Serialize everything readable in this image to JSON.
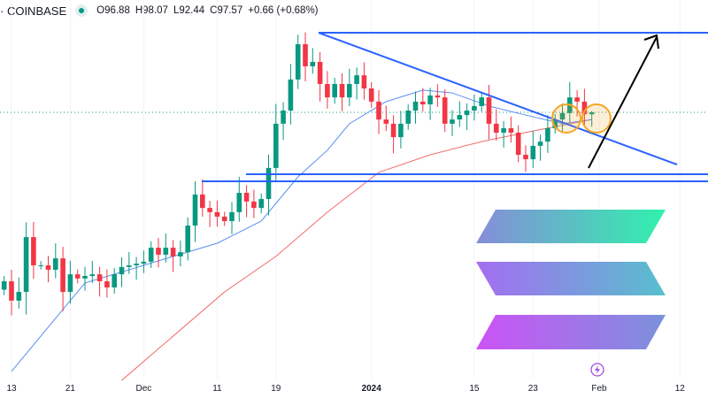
{
  "header": {
    "exchange": "· COINBASE",
    "status_color": "#089981",
    "open": "O96.88",
    "high": "H98.07",
    "low": "L92.44",
    "close": "C97.57",
    "change": "+0.66 (+0.68%)"
  },
  "chart_data": {
    "type": "candlestick",
    "title": "",
    "start_date": "2023-11-12",
    "closes": [
      37.2,
      30.3,
      33.4,
      53.0,
      42.9,
      42.9,
      41.3,
      45.4,
      33.4,
      39.7,
      38.2,
      39.1,
      39.7,
      37.2,
      35.0,
      39.7,
      42.3,
      42.9,
      43.5,
      44.2,
      49.2,
      46.7,
      49.2,
      46.1,
      47.6,
      57.1,
      68.2,
      63.4,
      61.9,
      60.3,
      58.7,
      61.9,
      68.8,
      65.7,
      63.4,
      66.6,
      77.7,
      93.5,
      98.2,
      109.3,
      121.9,
      114.0,
      115.6,
      107.7,
      102.9,
      107.7,
      102.9,
      107.7,
      110.8,
      106.1,
      101.4,
      95.0,
      93.5,
      88.7,
      93.5,
      98.2,
      101.4,
      100.4,
      103.6,
      102.9,
      93.5,
      95.0,
      96.6,
      98.2,
      99.8,
      102.9,
      93.5,
      90.3,
      91.9,
      90.3,
      82.4,
      80.8,
      85.6,
      87.1,
      91.9,
      95.0,
      97.3,
      102.9,
      101.4,
      96.88,
      97.57
    ],
    "last_candle": {
      "open": 96.88,
      "high": 98.07,
      "low": 92.44,
      "close": 97.57
    },
    "ma_blue": [
      [
        "2023-11-13",
        5.0
      ],
      [
        "2023-11-19",
        24.0
      ],
      [
        "2023-11-23",
        36.6
      ],
      [
        "2023-11-29",
        41.3
      ],
      [
        "2023-12-05",
        46.1
      ],
      [
        "2023-12-11",
        50.8
      ],
      [
        "2023-12-17",
        58.7
      ],
      [
        "2023-12-22",
        74.5
      ],
      [
        "2023-12-26",
        84.0
      ],
      [
        "2023-12-29",
        93.5
      ],
      [
        "2024-01-03",
        101.4
      ],
      [
        "2024-01-08",
        105.5
      ],
      [
        "2024-01-12",
        104.5
      ],
      [
        "2024-01-17",
        99.8
      ],
      [
        "2024-01-22",
        96.6
      ],
      [
        "2024-01-27",
        93.5
      ],
      [
        "2024-01-31",
        95.0
      ]
    ],
    "ma_red": [
      [
        "2023-11-28",
        1.8
      ],
      [
        "2023-12-05",
        17.6
      ],
      [
        "2023-12-12",
        33.4
      ],
      [
        "2023-12-19",
        46.1
      ],
      [
        "2023-12-26",
        61.9
      ],
      [
        "2024-01-02",
        76.1
      ],
      [
        "2024-01-09",
        82.4
      ],
      [
        "2024-01-16",
        87.1
      ],
      [
        "2024-01-23",
        90.9
      ],
      [
        "2024-01-31",
        95.0
      ]
    ],
    "x_ticks": [
      [
        "13",
        "2023-11-13"
      ],
      [
        "21",
        "2023-11-21"
      ],
      [
        "Dec",
        "2023-12-01"
      ],
      [
        "11",
        "2023-12-11"
      ],
      [
        "19",
        "2023-12-19"
      ],
      [
        "2024",
        "2024-01-01"
      ],
      [
        "15",
        "2024-01-15"
      ],
      [
        "23",
        "2024-01-23"
      ],
      [
        "Feb",
        "2024-02-01"
      ],
      [
        "12",
        "2024-02-12"
      ]
    ],
    "colors": {
      "up": "#089981",
      "down": "#f23645",
      "ma_blue": "#5b8def",
      "ma_red": "#f26d6d",
      "trendline": "#2962ff",
      "arrow": "#000000",
      "highlight": "#f5a623"
    },
    "grid": true
  },
  "icons": {
    "logo": "solana-logo",
    "event": "lightning-icon"
  }
}
